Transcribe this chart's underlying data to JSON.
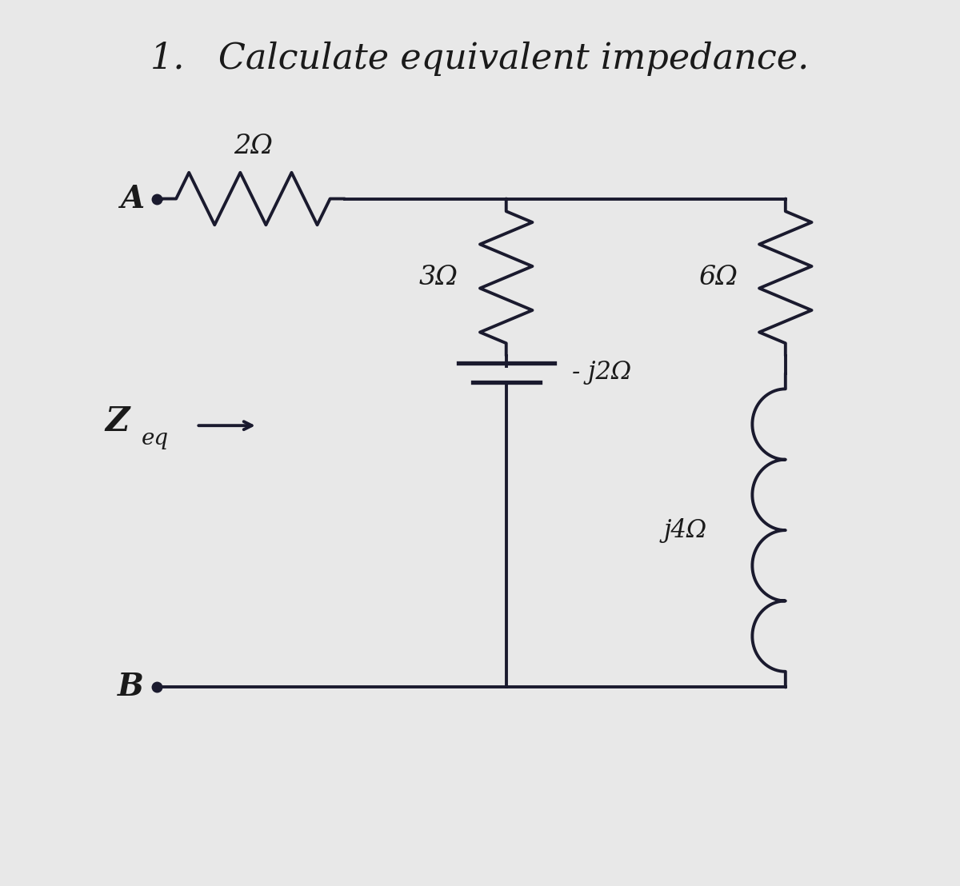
{
  "title": "1.   Calculate equivalent impedance.",
  "title_fontsize": 32,
  "bg_color": "#e8e8e8",
  "line_color": "#1a1a2e",
  "text_color": "#1a1a1a",
  "lw": 2.8,
  "label_2ohm": "2Ω",
  "label_3ohm": "3Ω",
  "label_6ohm": "6Ω",
  "label_neg_j2ohm": "- j2Ω",
  "label_j4ohm": "j4Ω",
  "label_A": "A",
  "label_B": "B",
  "label_Z": "Z",
  "label_eq": "eq",
  "xA": 1.8,
  "xN1": 5.8,
  "xN2": 9.0,
  "xB": 1.8,
  "yTop": 7.8,
  "yBot": 2.2,
  "yZeq": 5.2
}
